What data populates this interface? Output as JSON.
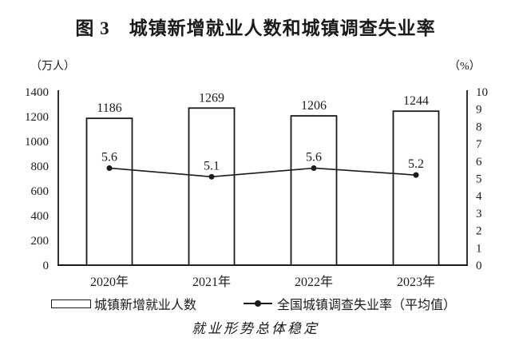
{
  "title": "图 3　城镇新增就业人数和城镇调查失业率",
  "axis_units": {
    "left": "（万人）",
    "right": "（%）"
  },
  "chart_data": {
    "type": "bar",
    "categories": [
      "2020年",
      "2021年",
      "2022年",
      "2023年"
    ],
    "series": [
      {
        "name": "城镇新增就业人数",
        "type": "bar",
        "axis": "left",
        "values": [
          1186,
          1269,
          1206,
          1244
        ]
      },
      {
        "name": "全国城镇调查失业率（平均值）",
        "type": "line",
        "axis": "right",
        "values": [
          5.6,
          5.1,
          5.6,
          5.2
        ]
      }
    ],
    "left_axis": {
      "label": "（万人）",
      "min": 0,
      "max": 1400,
      "step": 200
    },
    "right_axis": {
      "label": "（%）",
      "min": 0,
      "max": 10,
      "step": 1
    },
    "grid": false,
    "value_labels": true,
    "legend_position": "bottom"
  },
  "legend": {
    "bar_label": "城镇新增就业人数",
    "line_label": "全国城镇调查失业率（平均值）"
  },
  "caption": "就业形势总体稳定",
  "colors": {
    "ink": "#1a1a1a",
    "bar_fill": "#ffffff",
    "background": "#ffffff"
  }
}
